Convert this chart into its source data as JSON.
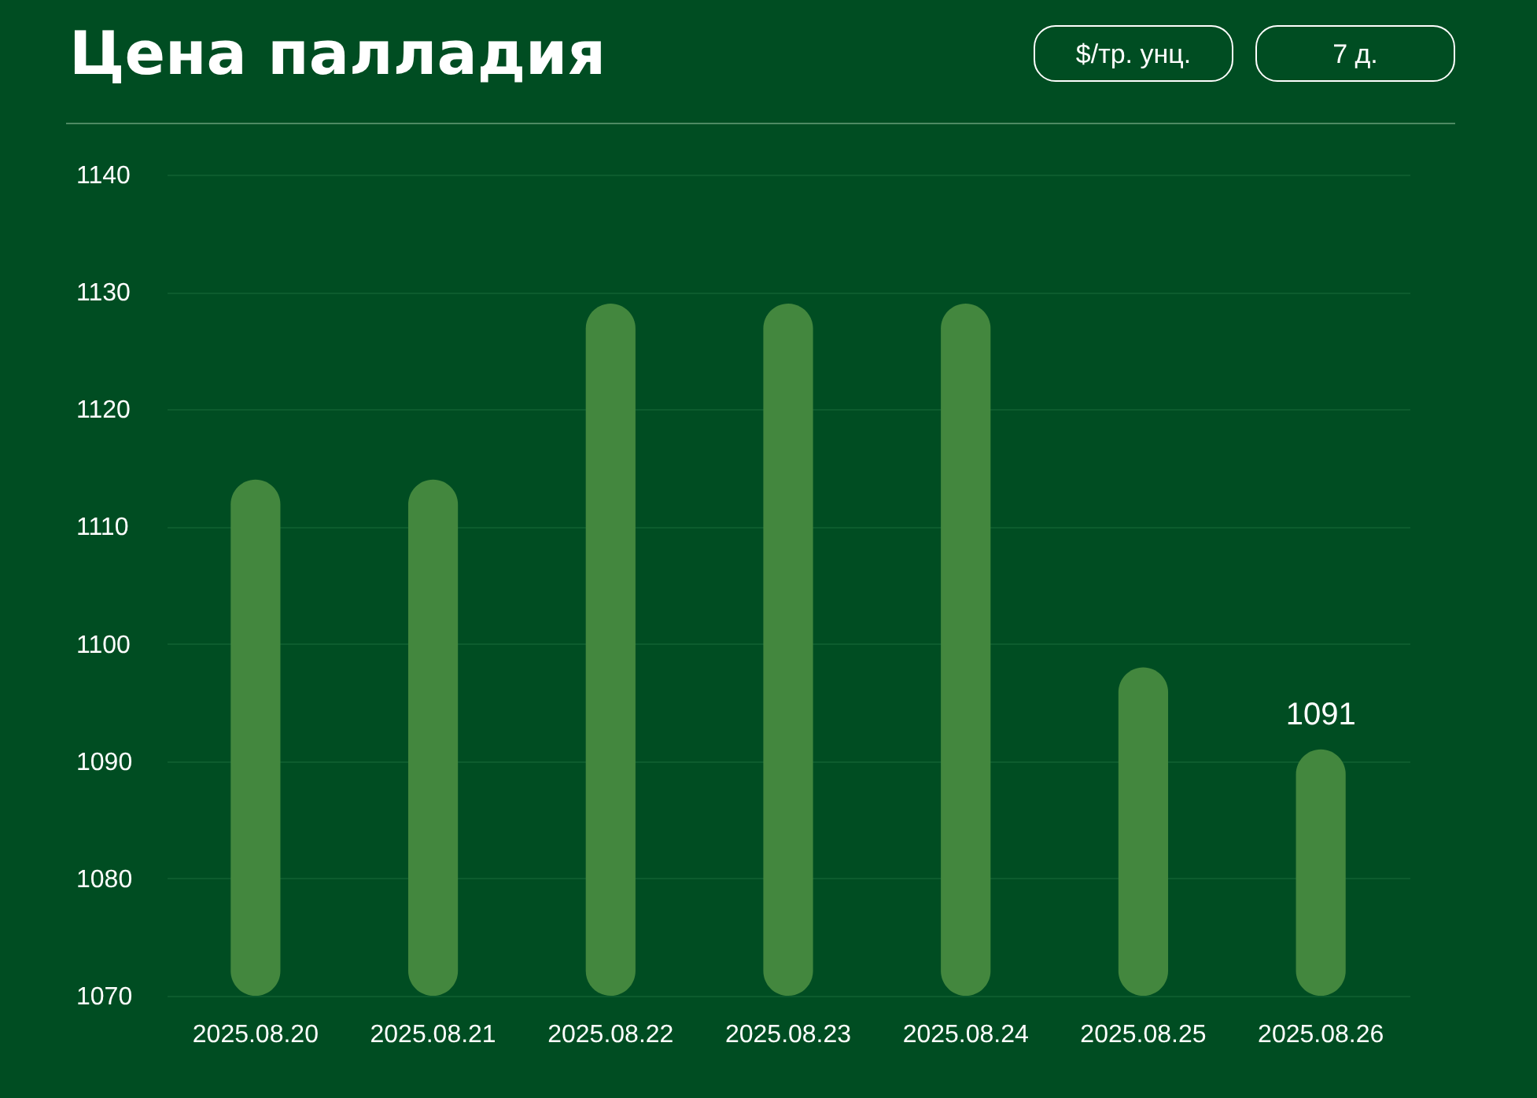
{
  "chart_data": {
    "type": "bar",
    "title": "Цена палладия",
    "annotations": [
      "$/тр. унц.",
      "7 д."
    ],
    "categories": [
      "2025.08.20",
      "2025.08.21",
      "2025.08.22",
      "2025.08.23",
      "2025.08.24",
      "2025.08.25",
      "2025.08.26"
    ],
    "base": [
      1070,
      1070,
      1070,
      1070,
      1070,
      1070,
      1070
    ],
    "values": [
      44,
      44,
      59,
      59,
      59,
      28,
      21
    ],
    "value_labels": [
      null,
      null,
      null,
      null,
      null,
      null,
      "1091"
    ],
    "color": "#43873e",
    "ylim": [
      1070,
      1140
    ],
    "yticks": [
      1070,
      1080,
      1090,
      1100,
      1110,
      1120,
      1130,
      1140
    ],
    "grid": "y"
  }
}
